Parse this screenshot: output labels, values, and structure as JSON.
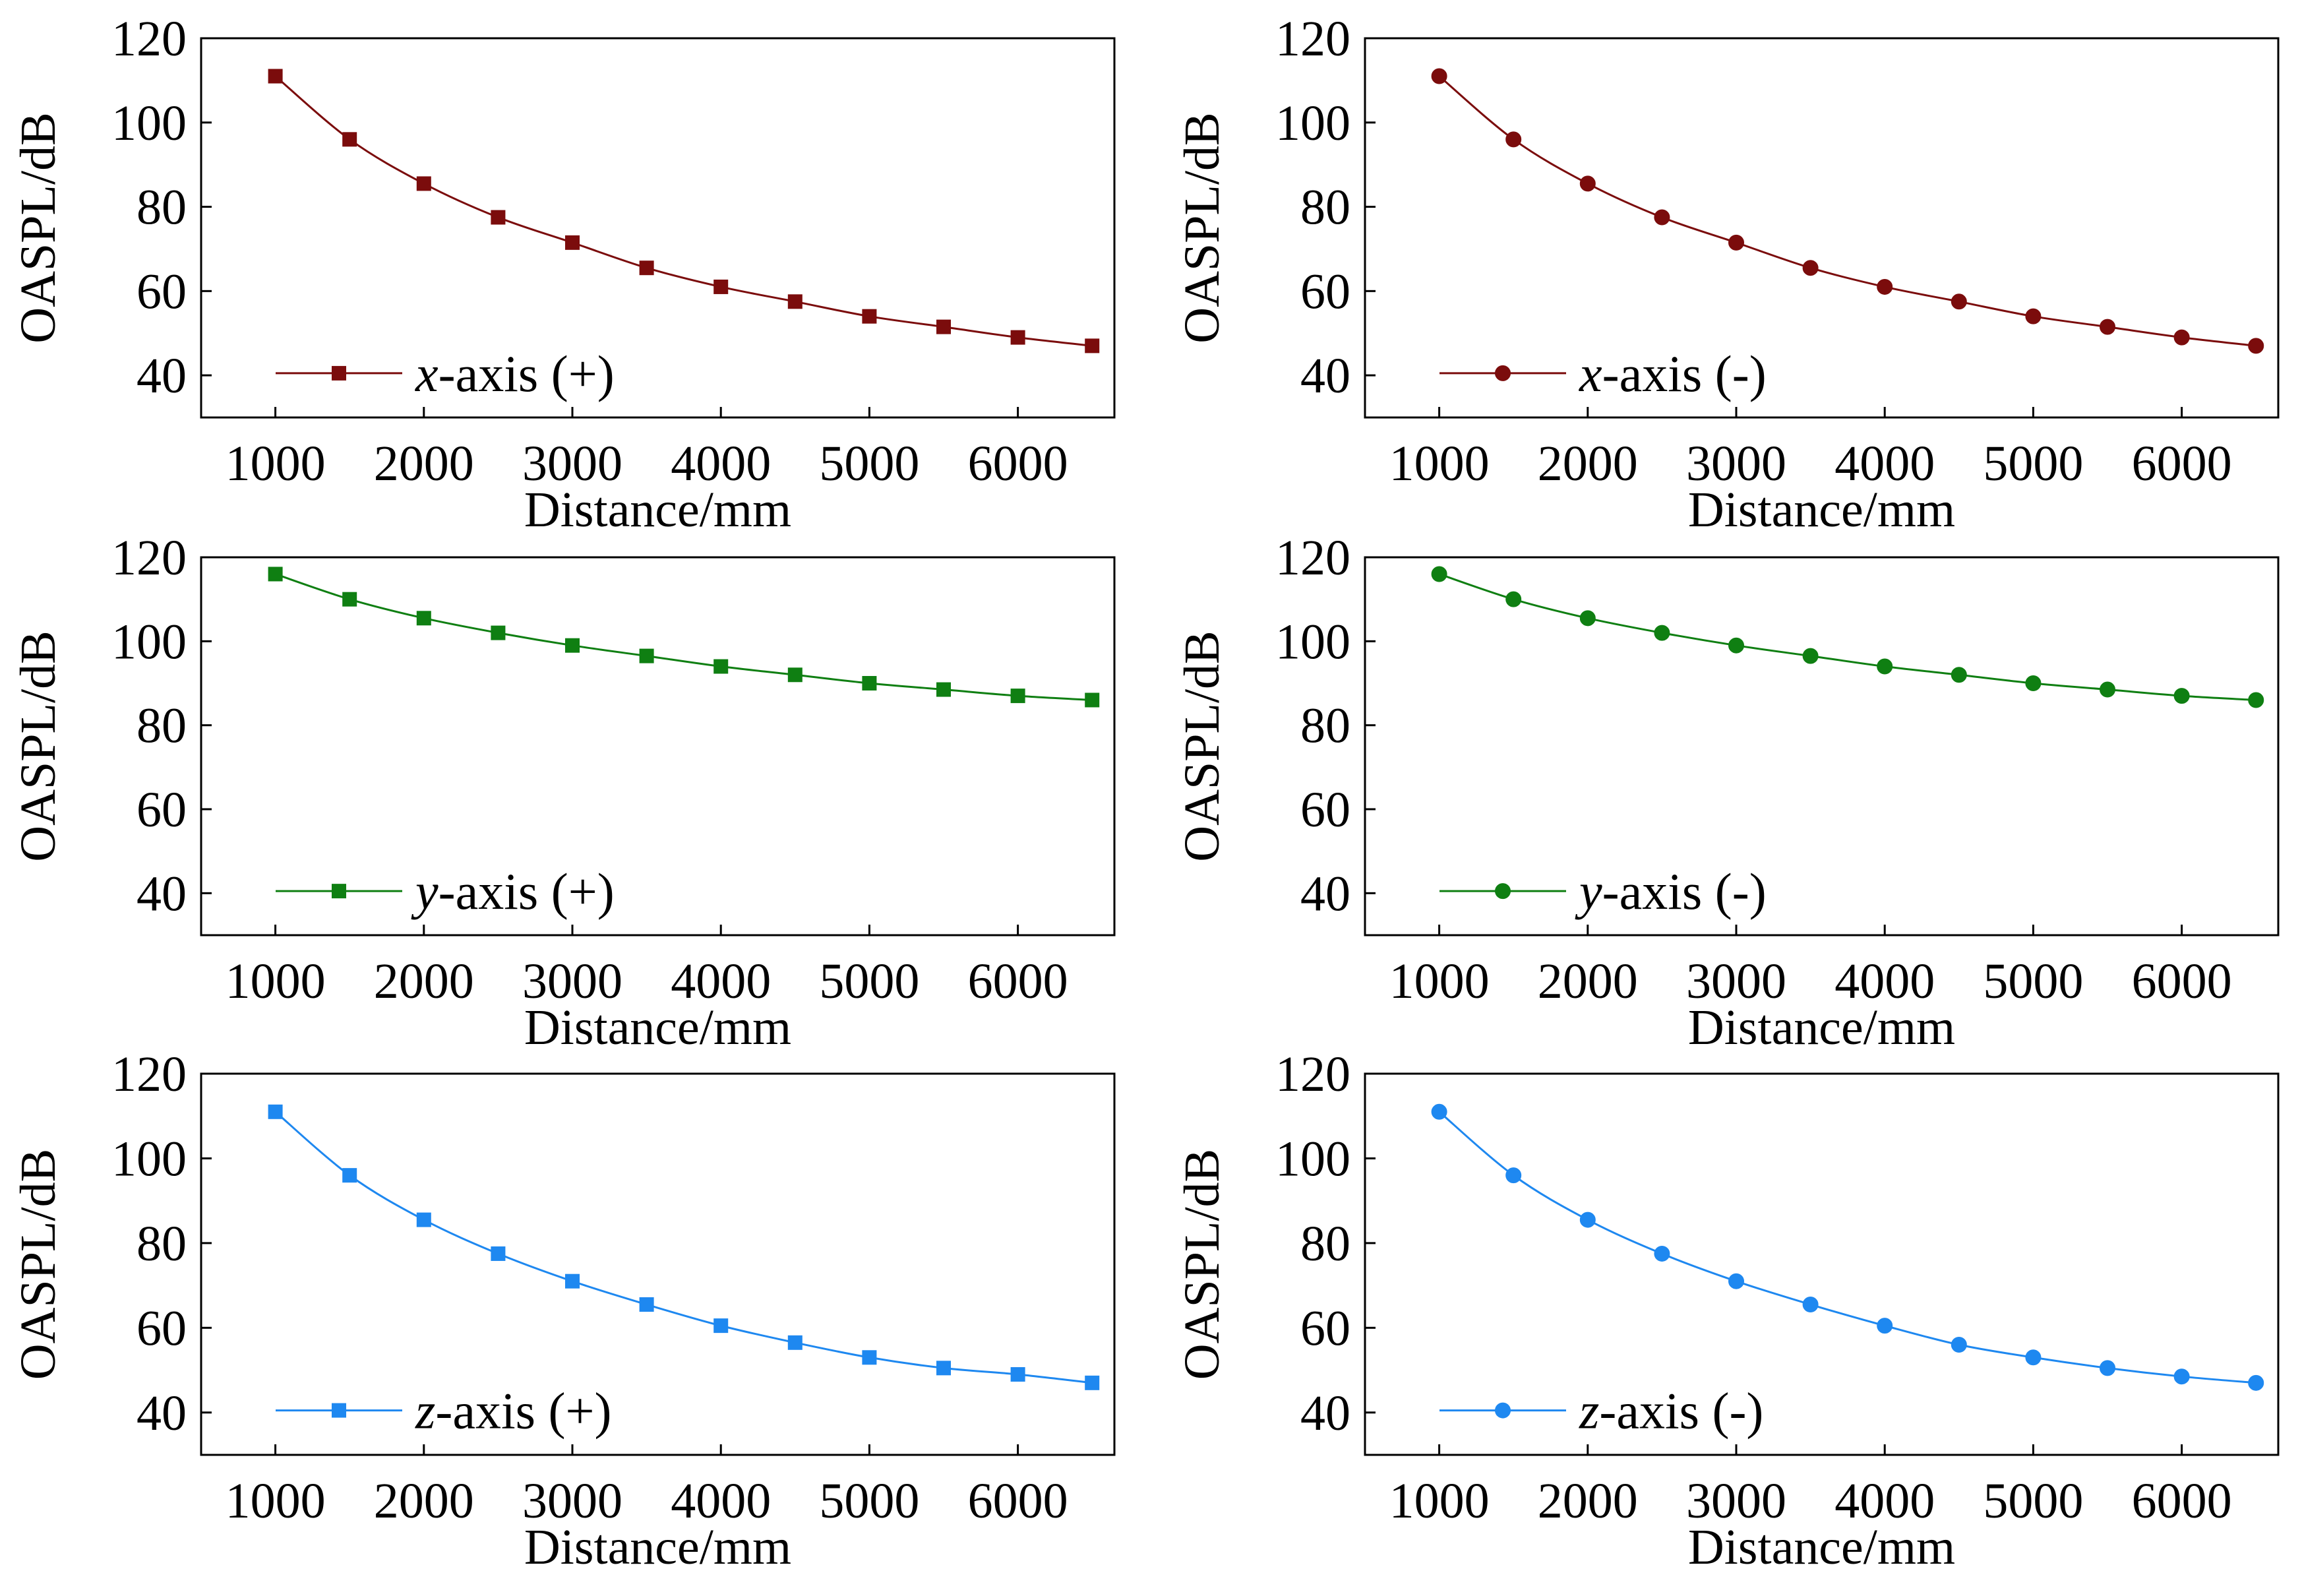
{
  "chart_data": [
    {
      "type": "line",
      "marker": "square",
      "color": "#7b0c0c",
      "x": [
        1000,
        1500,
        2000,
        2500,
        3000,
        3500,
        4000,
        4500,
        5000,
        5500,
        6000,
        6500
      ],
      "series": [
        {
          "name": "x-axis (+)",
          "values": [
            111,
            96,
            85.5,
            77.5,
            71.5,
            65.5,
            61,
            57.5,
            54,
            51.5,
            49,
            47
          ]
        }
      ],
      "legend": {
        "italic": "x",
        "rest": "-axis (+)"
      },
      "xlabel": "Distance/mm",
      "ylabel": "OASPL/dB",
      "xticks": [
        "1000",
        "2000",
        "3000",
        "4000",
        "5000",
        "6000"
      ],
      "yticks": [
        "40",
        "60",
        "80",
        "100",
        "120"
      ],
      "xlim": [
        500,
        6650
      ],
      "ylim": [
        30,
        120
      ],
      "grid": false,
      "legend_position": "lower-left"
    },
    {
      "type": "line",
      "marker": "circle",
      "color": "#7b0c0c",
      "x": [
        1000,
        1500,
        2000,
        2500,
        3000,
        3500,
        4000,
        4500,
        5000,
        5500,
        6000,
        6500
      ],
      "series": [
        {
          "name": "x-axis (-)",
          "values": [
            111,
            96,
            85.5,
            77.5,
            71.5,
            65.5,
            61,
            57.5,
            54,
            51.5,
            49,
            47
          ]
        }
      ],
      "legend": {
        "italic": "x",
        "rest": "-axis (-)"
      },
      "xlabel": "Distance/mm",
      "ylabel": "OASPL/dB",
      "xticks": [
        "1000",
        "2000",
        "3000",
        "4000",
        "5000",
        "6000"
      ],
      "yticks": [
        "40",
        "60",
        "80",
        "100",
        "120"
      ],
      "xlim": [
        500,
        6650
      ],
      "ylim": [
        30,
        120
      ],
      "grid": false,
      "legend_position": "lower-left"
    },
    {
      "type": "line",
      "marker": "square",
      "color": "#0f7f12",
      "x": [
        1000,
        1500,
        2000,
        2500,
        3000,
        3500,
        4000,
        4500,
        5000,
        5500,
        6000,
        6500
      ],
      "series": [
        {
          "name": "y-axis (+)",
          "values": [
            116,
            110,
            105.5,
            102,
            99,
            96.5,
            94,
            92,
            90,
            88.5,
            87,
            86
          ]
        }
      ],
      "legend": {
        "italic": "y",
        "rest": "-axis (+)"
      },
      "xlabel": "Distance/mm",
      "ylabel": "OASPL/dB",
      "xticks": [
        "1000",
        "2000",
        "3000",
        "4000",
        "5000",
        "6000"
      ],
      "yticks": [
        "40",
        "60",
        "80",
        "100",
        "120"
      ],
      "xlim": [
        500,
        6650
      ],
      "ylim": [
        30,
        120
      ],
      "grid": false,
      "legend_position": "lower-left"
    },
    {
      "type": "line",
      "marker": "circle",
      "color": "#0f7f12",
      "x": [
        1000,
        1500,
        2000,
        2500,
        3000,
        3500,
        4000,
        4500,
        5000,
        5500,
        6000,
        6500
      ],
      "series": [
        {
          "name": "y-axis (-)",
          "values": [
            116,
            110,
            105.5,
            102,
            99,
            96.5,
            94,
            92,
            90,
            88.5,
            87,
            86
          ]
        }
      ],
      "legend": {
        "italic": "y",
        "rest": "-axis (-)"
      },
      "xlabel": "Distance/mm",
      "ylabel": "OASPL/dB",
      "xticks": [
        "1000",
        "2000",
        "3000",
        "4000",
        "5000",
        "6000"
      ],
      "yticks": [
        "40",
        "60",
        "80",
        "100",
        "120"
      ],
      "xlim": [
        500,
        6650
      ],
      "ylim": [
        30,
        120
      ],
      "grid": false,
      "legend_position": "lower-left"
    },
    {
      "type": "line",
      "marker": "square",
      "color": "#1e88f0",
      "x": [
        1000,
        1500,
        2000,
        2500,
        3000,
        3500,
        4000,
        4500,
        5000,
        5500,
        6000,
        6500
      ],
      "series": [
        {
          "name": "z-axis (+)",
          "values": [
            111,
            96,
            85.5,
            77.5,
            71,
            65.5,
            60.5,
            56.5,
            53,
            50.5,
            49,
            47
          ]
        }
      ],
      "legend": {
        "italic": "z",
        "rest": "-axis (+)"
      },
      "xlabel": "Distance/mm",
      "ylabel": "OASPL/dB",
      "xticks": [
        "1000",
        "2000",
        "3000",
        "4000",
        "5000",
        "6000"
      ],
      "yticks": [
        "40",
        "60",
        "80",
        "100",
        "120"
      ],
      "xlim": [
        500,
        6650
      ],
      "ylim": [
        30,
        120
      ],
      "grid": false,
      "legend_position": "lower-left"
    },
    {
      "type": "line",
      "marker": "circle",
      "color": "#1e88f0",
      "x": [
        1000,
        1500,
        2000,
        2500,
        3000,
        3500,
        4000,
        4500,
        5000,
        5500,
        6000,
        6500
      ],
      "series": [
        {
          "name": "z-axis (-)",
          "values": [
            111,
            96,
            85.5,
            77.5,
            71,
            65.5,
            60.5,
            56,
            53,
            50.5,
            48.5,
            47
          ]
        }
      ],
      "legend": {
        "italic": "z",
        "rest": "-axis (-)"
      },
      "xlabel": "Distance/mm",
      "ylabel": "OASPL/dB",
      "xticks": [
        "1000",
        "2000",
        "3000",
        "4000",
        "5000",
        "6000"
      ],
      "yticks": [
        "40",
        "60",
        "80",
        "100",
        "120"
      ],
      "xlim": [
        500,
        6650
      ],
      "ylim": [
        30,
        120
      ],
      "grid": false,
      "legend_position": "lower-left"
    }
  ]
}
